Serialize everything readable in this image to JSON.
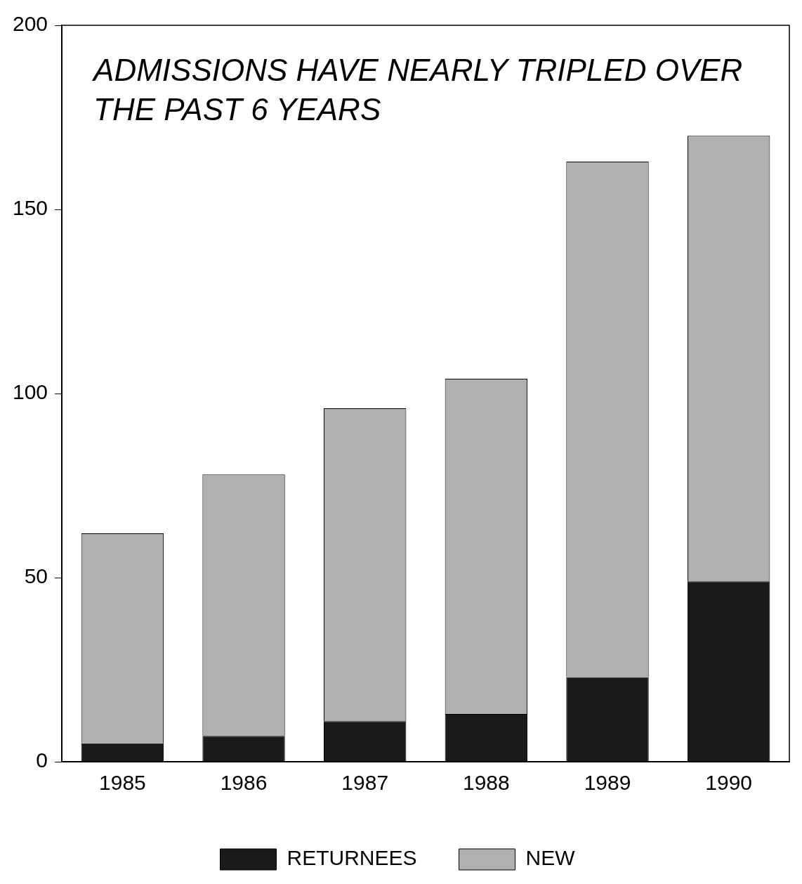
{
  "chart_data": {
    "type": "bar",
    "title": "ADMISSIONS HAVE NEARLY TRIPLED OVER THE PAST 6 YEARS",
    "categories": [
      "1985",
      "1986",
      "1987",
      "1988",
      "1989",
      "1990"
    ],
    "stacked": true,
    "series": [
      {
        "name": "RETURNEES",
        "color": "#1a1a1a",
        "values": [
          5,
          7,
          11,
          13,
          23,
          49
        ]
      },
      {
        "name": "NEW",
        "color": "#b0b0b0",
        "values": [
          57,
          71,
          85,
          91,
          140,
          121
        ]
      }
    ],
    "ylim": [
      0,
      200
    ],
    "yticks": [
      0,
      50,
      100,
      150,
      200
    ],
    "grid": false,
    "legend": "bottom"
  }
}
